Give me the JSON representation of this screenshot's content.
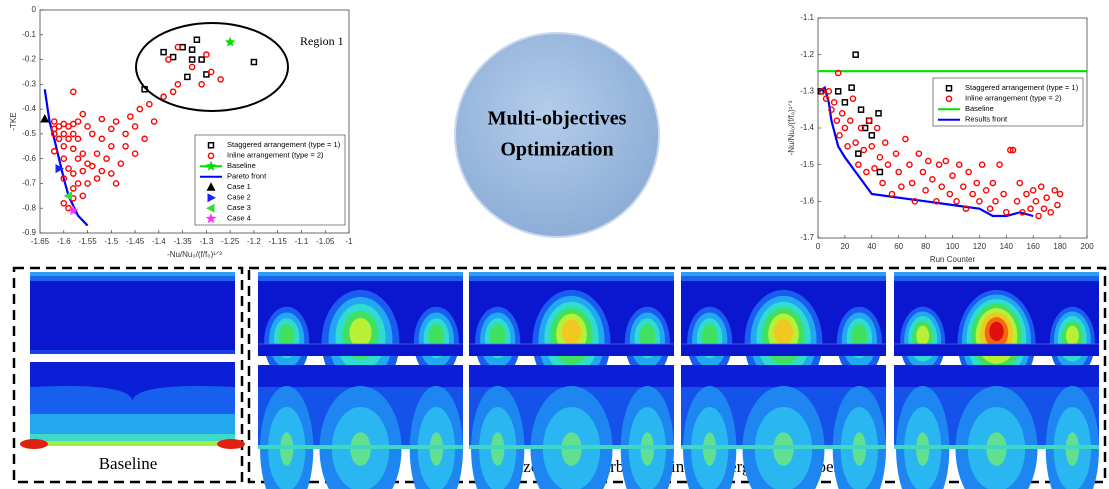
{
  "chart_data": [
    {
      "type": "scatter",
      "xlabel": "-Nu/Nu₀/(f/f₀)¹ᐟ³",
      "ylabel": "-TKE",
      "annotation": "Region 1",
      "xlim": [
        -1.65,
        -1
      ],
      "ylim": [
        -0.9,
        0
      ],
      "xticks": [
        -1.65,
        -1.6,
        -1.55,
        -1.5,
        -1.45,
        -1.4,
        -1.35,
        -1.3,
        -1.25,
        -1.2,
        -1.15,
        -1.1,
        -1.05,
        -1
      ],
      "yticks": [
        0,
        -0.1,
        -0.2,
        -0.3,
        -0.4,
        -0.5,
        -0.6,
        -0.7,
        -0.8,
        -0.9
      ],
      "legend": "lower right",
      "series": [
        {
          "name": "Staggered arrangement (type = 1)",
          "color": "#000000",
          "marker": "square",
          "x": [
            -1.43,
            -1.39,
            -1.37,
            -1.35,
            -1.32,
            -1.31,
            -1.33,
            -1.34,
            -1.3,
            -1.2,
            -1.33
          ],
          "values": [
            -0.32,
            -0.17,
            -0.19,
            -0.15,
            -0.12,
            -0.2,
            -0.2,
            -0.27,
            -0.26,
            -0.21,
            -0.16
          ]
        },
        {
          "name": "Inline arrangement (type = 2)",
          "color": "#ff0000",
          "marker": "circle",
          "x": [
            -1.62,
            -1.61,
            -1.6,
            -1.59,
            -1.58,
            -1.57,
            -1.6,
            -1.61,
            -1.62,
            -1.59,
            -1.58,
            -1.57,
            -1.6,
            -1.62,
            -1.58,
            -1.56,
            -1.6,
            -1.57,
            -1.55,
            -1.59,
            -1.58,
            -1.56,
            -1.54,
            -1.57,
            -1.58,
            -1.55,
            -1.53,
            -1.58,
            -1.56,
            -1.6,
            -1.52,
            -1.51,
            -1.5,
            -1.49,
            -1.48,
            -1.5,
            -1.52,
            -1.54,
            -1.5,
            -1.47,
            -1.45,
            -1.46,
            -1.44,
            -1.42,
            -1.41,
            -1.43,
            -1.45,
            -1.47,
            -1.49,
            -1.52,
            -1.55,
            -1.58,
            -1.56,
            -1.53,
            -1.62,
            -1.39,
            -1.37,
            -1.36,
            -1.31,
            -1.29,
            -1.36,
            -1.38,
            -1.33,
            -1.3,
            -1.27,
            -1.6,
            -1.59
          ],
          "values": [
            -0.45,
            -0.47,
            -0.46,
            -0.47,
            -0.46,
            -0.45,
            -0.5,
            -0.52,
            -0.5,
            -0.52,
            -0.5,
            -0.52,
            -0.55,
            -0.57,
            -0.56,
            -0.58,
            -0.6,
            -0.6,
            -0.62,
            -0.64,
            -0.66,
            -0.65,
            -0.63,
            -0.7,
            -0.72,
            -0.7,
            -0.68,
            -0.76,
            -0.75,
            -0.78,
            -0.65,
            -0.6,
            -0.66,
            -0.7,
            -0.62,
            -0.55,
            -0.52,
            -0.5,
            -0.48,
            -0.5,
            -0.47,
            -0.43,
            -0.4,
            -0.38,
            -0.45,
            -0.52,
            -0.58,
            -0.55,
            -0.45,
            -0.44,
            -0.47,
            -0.33,
            -0.42,
            -0.58,
            -0.48,
            -0.35,
            -0.33,
            -0.3,
            -0.3,
            -0.25,
            -0.15,
            -0.2,
            -0.23,
            -0.18,
            -0.28,
            -0.68,
            -0.8
          ]
        },
        {
          "name": "Baseline",
          "color": "#00e000",
          "marker": "star",
          "x": [
            -1.25
          ],
          "values": [
            -0.13
          ]
        },
        {
          "name": "Pareto front",
          "color": "#0000ff",
          "marker": "line",
          "x": [
            -1.64,
            -1.63,
            -1.62,
            -1.61,
            -1.6,
            -1.59,
            -1.58,
            -1.57,
            -1.55
          ],
          "values": [
            -0.32,
            -0.45,
            -0.52,
            -0.6,
            -0.68,
            -0.75,
            -0.79,
            -0.83,
            -0.87
          ]
        },
        {
          "name": "Case 1",
          "color": "#000000",
          "marker": "tri-up",
          "x": [
            -1.64
          ],
          "values": [
            -0.44
          ]
        },
        {
          "name": "Case 2",
          "color": "#2020ff",
          "marker": "tri-right",
          "x": [
            -1.61
          ],
          "values": [
            -0.64
          ]
        },
        {
          "name": "Case 3",
          "color": "#30e030",
          "marker": "tri-left",
          "x": [
            -1.59
          ],
          "values": [
            -0.75
          ]
        },
        {
          "name": "Case 4",
          "color": "#ff30ff",
          "marker": "star",
          "x": [
            -1.58
          ],
          "values": [
            -0.81
          ]
        }
      ]
    },
    {
      "type": "scatter",
      "xlabel": "Run Counter",
      "ylabel": "-Nu/Nu₀/(f/f₀)¹ᐟ³",
      "xlim": [
        0,
        200
      ],
      "ylim": [
        -1.7,
        -1.1
      ],
      "xticks": [
        0,
        20,
        40,
        60,
        80,
        100,
        120,
        140,
        160,
        180,
        200
      ],
      "yticks": [
        -1.1,
        -1.2,
        -1.3,
        -1.4,
        -1.5,
        -1.6,
        -1.7
      ],
      "legend": "upper right",
      "series": [
        {
          "name": "Staggered arrangement (type = 1)",
          "color": "#000000",
          "marker": "square",
          "x": [
            2,
            15,
            20,
            25,
            28,
            32,
            35,
            38,
            45,
            30,
            40,
            46
          ],
          "values": [
            -1.3,
            -1.3,
            -1.33,
            -1.29,
            -1.2,
            -1.35,
            -1.4,
            -1.38,
            -1.36,
            -1.47,
            -1.42,
            -1.52
          ]
        },
        {
          "name": "Inline arrangement (type = 2)",
          "color": "#ff0000",
          "marker": "circle",
          "x": [
            3,
            6,
            8,
            10,
            12,
            14,
            15,
            16,
            18,
            20,
            22,
            24,
            26,
            28,
            30,
            32,
            34,
            36,
            38,
            40,
            42,
            44,
            46,
            48,
            50,
            52,
            55,
            58,
            60,
            62,
            65,
            68,
            70,
            72,
            75,
            78,
            80,
            82,
            85,
            88,
            90,
            92,
            95,
            98,
            100,
            103,
            105,
            108,
            110,
            112,
            115,
            118,
            120,
            122,
            125,
            128,
            130,
            132,
            135,
            138,
            140,
            143,
            145,
            148,
            150,
            152,
            155,
            158,
            160,
            162,
            164,
            166,
            168,
            170,
            173,
            176,
            178,
            180
          ],
          "values": [
            -1.3,
            -1.32,
            -1.3,
            -1.35,
            -1.33,
            -1.38,
            -1.25,
            -1.42,
            -1.36,
            -1.4,
            -1.45,
            -1.38,
            -1.32,
            -1.44,
            -1.5,
            -1.4,
            -1.46,
            -1.52,
            -1.38,
            -1.45,
            -1.51,
            -1.4,
            -1.48,
            -1.55,
            -1.44,
            -1.5,
            -1.58,
            -1.47,
            -1.52,
            -1.56,
            -1.43,
            -1.5,
            -1.55,
            -1.6,
            -1.47,
            -1.52,
            -1.57,
            -1.49,
            -1.54,
            -1.6,
            -1.5,
            -1.56,
            -1.49,
            -1.58,
            -1.53,
            -1.6,
            -1.5,
            -1.56,
            -1.62,
            -1.52,
            -1.58,
            -1.55,
            -1.6,
            -1.5,
            -1.57,
            -1.62,
            -1.55,
            -1.6,
            -1.5,
            -1.58,
            -1.63,
            -1.46,
            -1.46,
            -1.6,
            -1.55,
            -1.63,
            -1.58,
            -1.62,
            -1.57,
            -1.6,
            -1.64,
            -1.56,
            -1.62,
            -1.59,
            -1.63,
            -1.57,
            -1.61,
            -1.58
          ]
        },
        {
          "name": "Baseline",
          "color": "#00e000",
          "marker": "line",
          "x": [
            0,
            200
          ],
          "values": [
            -1.245,
            -1.245
          ]
        },
        {
          "name": "Results front",
          "color": "#0000ff",
          "marker": "line",
          "x": [
            1,
            5,
            8,
            10,
            15,
            20,
            28,
            40,
            60,
            80,
            100,
            120,
            130,
            140,
            150,
            160
          ],
          "values": [
            -1.3,
            -1.29,
            -1.33,
            -1.38,
            -1.45,
            -1.48,
            -1.52,
            -1.58,
            -1.59,
            -1.6,
            -1.61,
            -1.62,
            -1.64,
            -1.64,
            -1.63,
            -1.64
          ]
        }
      ]
    }
  ],
  "center_label": [
    "Multi-objectives",
    "Optimization"
  ],
  "baseline_label": "Baseline",
  "optimized_label": "Optimized cases (turbulent kinetic energy and temperature)"
}
